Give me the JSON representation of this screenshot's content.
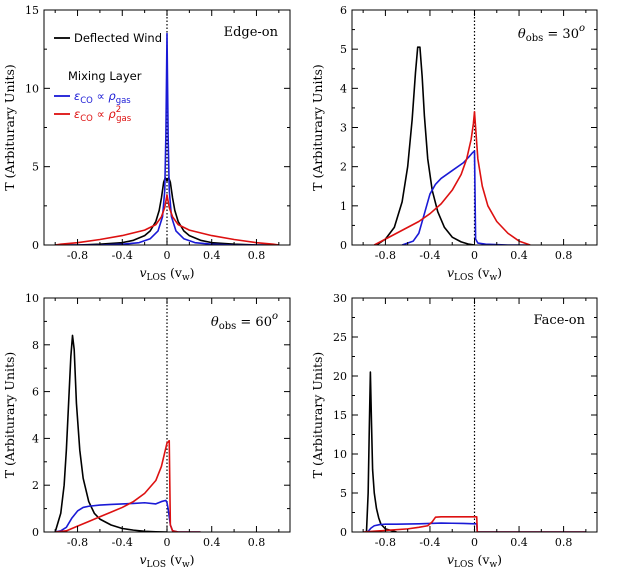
{
  "colors": {
    "deflected_wind": "#000000",
    "mixing_rho": "#1a1ad6",
    "mixing_rho2": "#dd1111",
    "axis": "#000000",
    "zero_line": "#000000"
  },
  "legend": {
    "title": "Mixing Layer",
    "deflected_wind": "Deflected Wind",
    "mixing_rho_main": "ε",
    "mixing_rho_sub": "CO",
    "mixing_rho_rel": " ∝ ρ",
    "mixing_rho_sub2": "gas",
    "mixing_rho2_main": "ε",
    "mixing_rho2_sub": "CO",
    "mixing_rho2_rel": " ∝ ρ",
    "mixing_rho2_sup": "2",
    "mixing_rho2_sub2": "gas"
  },
  "axis_labels": {
    "x_main": "v",
    "x_sub": "LOS",
    "x_unit_open": " (v",
    "x_unit_sub": "w",
    "x_unit_close": ")",
    "y": "T (Arbiturary Units)"
  },
  "panel_labels": {
    "p1": "Edge-on",
    "p2_main": "θ",
    "p2_sub": "obs",
    "p2_rest": " = 30",
    "p2_sup": "o",
    "p3_main": "θ",
    "p3_sub": "obs",
    "p3_rest": " = 60",
    "p3_sup": "o",
    "p4": "Face-on"
  },
  "chart_data": [
    {
      "type": "line",
      "title": "Edge-on",
      "xlabel": "vLOS (vw)",
      "ylabel": "T (Arbiturary Units)",
      "xlim": [
        -1.1,
        1.1
      ],
      "ylim": [
        0,
        15
      ],
      "xticks": [
        -0.8,
        -0.4,
        0,
        0.4,
        0.8
      ],
      "yticks": [
        0,
        5,
        10,
        15
      ],
      "series": [
        {
          "name": "Deflected Wind",
          "x": [
            -1.0,
            -0.8,
            -0.6,
            -0.4,
            -0.3,
            -0.2,
            -0.15,
            -0.1,
            -0.07,
            -0.05,
            -0.03,
            -0.015,
            0.0,
            0.015,
            0.03,
            0.05,
            0.07,
            0.1,
            0.15,
            0.2,
            0.3,
            0.4,
            0.6,
            0.8,
            1.0
          ],
          "y": [
            0.0,
            0.0,
            0.05,
            0.15,
            0.3,
            0.6,
            0.9,
            1.5,
            2.2,
            3.0,
            4.0,
            4.3,
            4.1,
            4.3,
            4.0,
            3.0,
            2.2,
            1.5,
            0.9,
            0.6,
            0.3,
            0.15,
            0.05,
            0.0,
            0.0
          ]
        },
        {
          "name": "εCO ∝ ρgas",
          "x": [
            -1.0,
            -0.6,
            -0.4,
            -0.25,
            -0.15,
            -0.08,
            -0.04,
            -0.02,
            -0.01,
            0.0,
            0.01,
            0.02,
            0.04,
            0.08,
            0.15,
            0.25,
            0.4,
            0.6,
            1.0
          ],
          "y": [
            0.0,
            0.0,
            0.05,
            0.15,
            0.4,
            0.9,
            1.8,
            3.5,
            7.0,
            13.5,
            7.0,
            3.5,
            1.8,
            0.9,
            0.4,
            0.15,
            0.05,
            0.0,
            0.0
          ]
        },
        {
          "name": "εCO ∝ ρ²gas",
          "x": [
            -1.0,
            -0.95,
            -0.8,
            -0.6,
            -0.4,
            -0.2,
            -0.1,
            -0.05,
            -0.02,
            0.0,
            0.02,
            0.05,
            0.1,
            0.2,
            0.4,
            0.6,
            0.8,
            0.95,
            1.0
          ],
          "y": [
            0.0,
            0.05,
            0.15,
            0.35,
            0.6,
            0.95,
            1.3,
            1.8,
            2.4,
            3.2,
            2.4,
            1.8,
            1.3,
            0.95,
            0.6,
            0.35,
            0.15,
            0.05,
            0.0
          ]
        }
      ]
    },
    {
      "type": "line",
      "title": "θobs = 30o",
      "xlabel": "vLOS (vw)",
      "ylabel": "T (Arbiturary Units)",
      "xlim": [
        -1.1,
        1.1
      ],
      "ylim": [
        0,
        6
      ],
      "xticks": [
        -0.8,
        -0.4,
        0,
        0.4,
        0.8
      ],
      "yticks": [
        0,
        1,
        2,
        3,
        4,
        5,
        6
      ],
      "series": [
        {
          "name": "Deflected Wind",
          "x": [
            -0.88,
            -0.8,
            -0.72,
            -0.65,
            -0.6,
            -0.56,
            -0.53,
            -0.51,
            -0.49,
            -0.47,
            -0.45,
            -0.42,
            -0.38,
            -0.33,
            -0.27,
            -0.2,
            -0.12,
            -0.05,
            0.0
          ],
          "y": [
            0.0,
            0.15,
            0.45,
            1.1,
            2.0,
            3.2,
            4.4,
            5.05,
            5.05,
            4.3,
            3.3,
            2.2,
            1.4,
            0.85,
            0.45,
            0.2,
            0.08,
            0.02,
            0.0
          ]
        },
        {
          "name": "εCO ∝ ρgas",
          "x": [
            -0.65,
            -0.55,
            -0.5,
            -0.45,
            -0.4,
            -0.35,
            -0.3,
            -0.2,
            -0.1,
            -0.05,
            -0.02,
            0.0,
            0.01,
            0.03,
            0.1,
            0.3,
            0.5
          ],
          "y": [
            0.0,
            0.1,
            0.3,
            0.8,
            1.3,
            1.55,
            1.7,
            1.9,
            2.1,
            2.25,
            2.35,
            2.4,
            0.15,
            0.05,
            0.02,
            0.0,
            0.0
          ]
        },
        {
          "name": "εCO ∝ ρ²gas",
          "x": [
            -0.9,
            -0.8,
            -0.7,
            -0.6,
            -0.5,
            -0.4,
            -0.3,
            -0.2,
            -0.12,
            -0.07,
            -0.03,
            -0.01,
            0.0,
            0.01,
            0.03,
            0.07,
            0.12,
            0.2,
            0.3,
            0.4,
            0.5
          ],
          "y": [
            0.0,
            0.15,
            0.3,
            0.45,
            0.6,
            0.8,
            1.05,
            1.4,
            1.8,
            2.2,
            2.7,
            3.1,
            3.4,
            3.0,
            2.2,
            1.5,
            1.0,
            0.6,
            0.3,
            0.1,
            0.0
          ]
        }
      ]
    },
    {
      "type": "line",
      "title": "θobs = 60o",
      "xlabel": "vLOS (vw)",
      "ylabel": "T (Arbiturary Units)",
      "xlim": [
        -1.1,
        1.1
      ],
      "ylim": [
        0,
        10
      ],
      "xticks": [
        -0.8,
        -0.4,
        0,
        0.4,
        0.8
      ],
      "yticks": [
        0,
        2,
        4,
        6,
        8,
        10
      ],
      "series": [
        {
          "name": "Deflected Wind",
          "x": [
            -1.0,
            -0.95,
            -0.92,
            -0.9,
            -0.88,
            -0.86,
            -0.845,
            -0.83,
            -0.81,
            -0.78,
            -0.75,
            -0.7,
            -0.65,
            -0.6,
            -0.5,
            -0.4,
            -0.3,
            -0.2,
            -0.1,
            0.0
          ],
          "y": [
            0.0,
            0.8,
            2.0,
            3.5,
            5.5,
            7.5,
            8.4,
            7.8,
            5.5,
            3.5,
            2.3,
            1.3,
            0.8,
            0.55,
            0.3,
            0.15,
            0.08,
            0.03,
            0.01,
            0.0
          ]
        },
        {
          "name": "εCO ∝ ρgas",
          "x": [
            -1.0,
            -0.95,
            -0.9,
            -0.85,
            -0.8,
            -0.75,
            -0.7,
            -0.6,
            -0.5,
            -0.4,
            -0.3,
            -0.2,
            -0.1,
            -0.05,
            -0.01,
            0.0,
            0.01,
            0.03,
            0.05,
            0.1,
            0.3
          ],
          "y": [
            0.0,
            0.05,
            0.2,
            0.6,
            0.9,
            1.05,
            1.1,
            1.15,
            1.18,
            1.2,
            1.22,
            1.25,
            1.2,
            1.3,
            1.35,
            1.25,
            1.0,
            0.3,
            0.05,
            0.0,
            0.0
          ]
        },
        {
          "name": "εCO ∝ ρ²gas",
          "x": [
            -1.0,
            -0.9,
            -0.8,
            -0.7,
            -0.6,
            -0.5,
            -0.4,
            -0.3,
            -0.2,
            -0.1,
            -0.05,
            -0.02,
            0.0,
            0.02,
            0.03,
            0.05,
            0.1,
            0.3
          ],
          "y": [
            0.0,
            0.05,
            0.25,
            0.45,
            0.65,
            0.85,
            1.05,
            1.3,
            1.65,
            2.2,
            2.8,
            3.4,
            3.8,
            3.9,
            0.3,
            0.05,
            0.0,
            0.0
          ]
        }
      ]
    },
    {
      "type": "line",
      "title": "Face-on",
      "xlabel": "vLOS (vw)",
      "ylabel": "T (Arbiturary Units)",
      "xlim": [
        -1.1,
        1.1
      ],
      "ylim": [
        0,
        30
      ],
      "xticks": [
        -0.8,
        -0.4,
        0,
        0.4,
        0.8
      ],
      "yticks": [
        0,
        5,
        10,
        15,
        20,
        25,
        30
      ],
      "series": [
        {
          "name": "Deflected Wind",
          "x": [
            -0.97,
            -0.955,
            -0.945,
            -0.935,
            -0.925,
            -0.915,
            -0.9,
            -0.88,
            -0.86,
            -0.84,
            -0.8,
            -0.7
          ],
          "y": [
            0.0,
            5.0,
            13.0,
            20.5,
            14.0,
            8.0,
            5.0,
            3.0,
            1.8,
            1.0,
            0.4,
            0.0
          ]
        },
        {
          "name": "εCO ∝ ρgas",
          "x": [
            -0.96,
            -0.93,
            -0.9,
            -0.85,
            -0.8,
            -0.7,
            -0.5,
            -0.4,
            -0.3,
            -0.2,
            -0.1,
            0.0,
            0.02,
            0.025,
            0.1,
            0.3,
            0.6,
            1.0
          ],
          "y": [
            0.0,
            0.5,
            0.8,
            0.95,
            1.0,
            1.0,
            1.05,
            1.1,
            1.15,
            1.12,
            1.1,
            1.05,
            1.05,
            0.0,
            0.0,
            0.0,
            0.0,
            0.0
          ]
        },
        {
          "name": "εCO ∝ ρ²gas",
          "x": [
            -1.0,
            -0.9,
            -0.8,
            -0.6,
            -0.5,
            -0.42,
            -0.38,
            -0.35,
            -0.3,
            -0.2,
            -0.1,
            0.0,
            0.02,
            0.025,
            0.1,
            0.3,
            0.6,
            1.0
          ],
          "y": [
            0.0,
            0.1,
            0.2,
            0.4,
            0.6,
            0.8,
            1.3,
            1.9,
            1.95,
            1.95,
            1.95,
            1.95,
            1.95,
            0.0,
            0.0,
            0.0,
            0.0,
            0.0
          ]
        }
      ]
    }
  ]
}
